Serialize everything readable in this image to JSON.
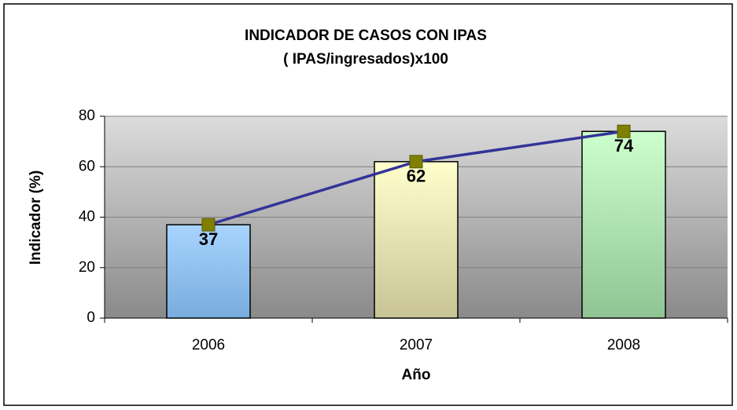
{
  "chart_data": {
    "type": "bar",
    "title": "INDICADOR DE CASOS CON IPAS",
    "subtitle": "( IPAS/ingresados)x100",
    "x_label": "Año",
    "y_label": "Indicador (%)",
    "categories": [
      "2006",
      "2007",
      "2008"
    ],
    "series": [
      {
        "type": "bar",
        "values": [
          37,
          62,
          74
        ],
        "colors": [
          [
            "#a8d4ff",
            "#78acdc"
          ],
          [
            "#ffffcc",
            "#c8c496"
          ],
          [
            "#ccffcc",
            "#90c494"
          ]
        ]
      },
      {
        "type": "line",
        "values": [
          37,
          62,
          74
        ],
        "color": "#333399",
        "marker_color": "#808000"
      }
    ],
    "ylim": [
      0,
      80
    ],
    "yticks": [
      0,
      20,
      40,
      60,
      80
    ],
    "grid": true
  }
}
